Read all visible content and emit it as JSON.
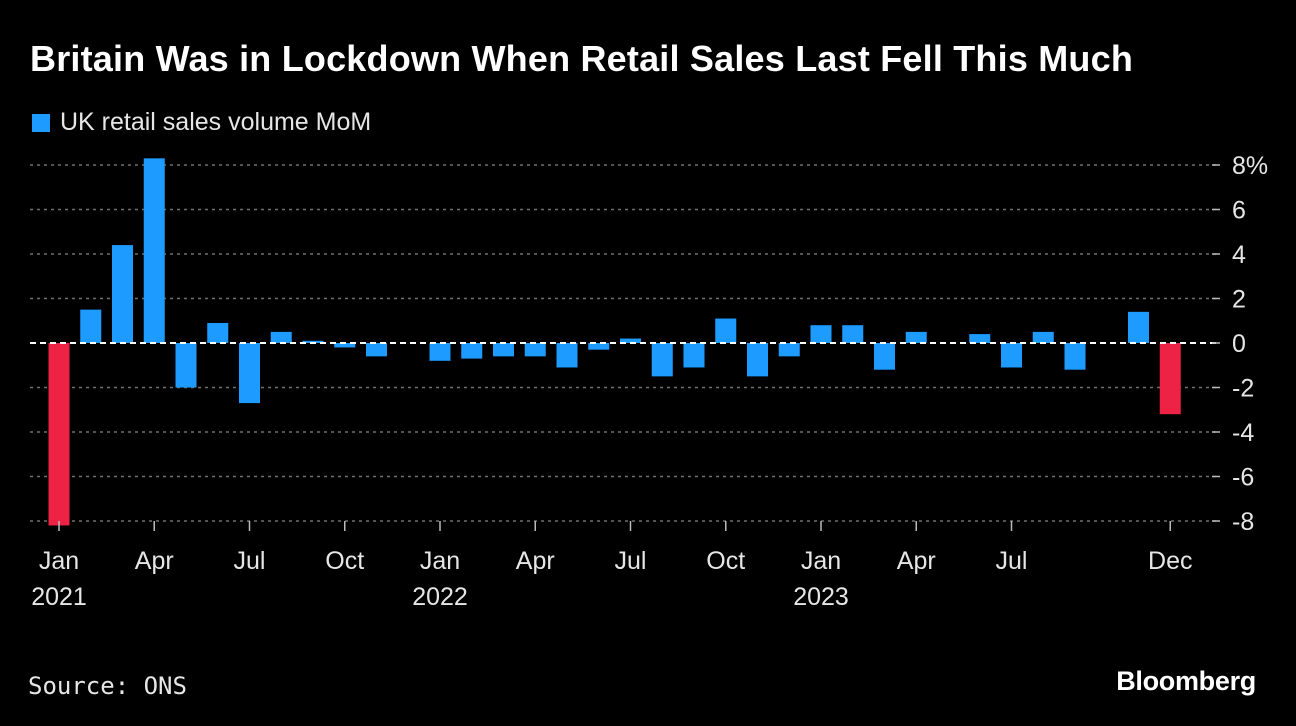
{
  "chart_data": {
    "type": "bar",
    "title": "Britain Was in Lockdown When Retail Sales Last Fell This Much",
    "source": "Source: ONS",
    "brand": "Bloomberg",
    "colors": {
      "positive": "#1e9bff",
      "highlight": "#ee2244",
      "grid": "#6f6f6f",
      "zero": "#ffffff"
    },
    "legend": {
      "position": "top-left",
      "entries": [
        {
          "name": "UK retail sales volume MoM",
          "color": "#1e9bff"
        }
      ]
    },
    "yaxis": {
      "ylim": [
        -8,
        8
      ],
      "ticks": [
        8,
        6,
        4,
        2,
        0,
        -2,
        -4,
        -6,
        -8
      ],
      "tick_labels": [
        "8%",
        "6",
        "4",
        "2",
        "0",
        "-2",
        "-4",
        "-6",
        "-8"
      ],
      "position": "right",
      "grid": true
    },
    "xaxis": {
      "tick_months": [
        "2021-01",
        "2021-04",
        "2021-07",
        "2021-10",
        "2022-01",
        "2022-04",
        "2022-07",
        "2022-10",
        "2023-01",
        "2023-04",
        "2023-07",
        "2023-12"
      ],
      "tick_labels": [
        [
          "Jan",
          "2021"
        ],
        [
          "Apr",
          ""
        ],
        [
          "Jul",
          ""
        ],
        [
          "Oct",
          ""
        ],
        [
          "Jan",
          "2022"
        ],
        [
          "Apr",
          ""
        ],
        [
          "Jul",
          ""
        ],
        [
          "Oct",
          ""
        ],
        [
          "Jan",
          "2023"
        ],
        [
          "Apr",
          ""
        ],
        [
          "Jul",
          ""
        ],
        [
          "Dec",
          ""
        ]
      ]
    },
    "categories": [
      "2021-01",
      "2021-02",
      "2021-03",
      "2021-04",
      "2021-05",
      "2021-06",
      "2021-07",
      "2021-08",
      "2021-09",
      "2021-10",
      "2021-11",
      "2021-12",
      "2022-01",
      "2022-02",
      "2022-03",
      "2022-04",
      "2022-05",
      "2022-06",
      "2022-07",
      "2022-08",
      "2022-09",
      "2022-10",
      "2022-11",
      "2022-12",
      "2023-01",
      "2023-02",
      "2023-03",
      "2023-04",
      "2023-05",
      "2023-06",
      "2023-07",
      "2023-08",
      "2023-09",
      "2023-10",
      "2023-11",
      "2023-12"
    ],
    "series": [
      {
        "name": "UK retail sales volume MoM",
        "values": [
          -8.2,
          1.5,
          4.4,
          8.3,
          -2.0,
          0.9,
          -2.7,
          0.5,
          0.1,
          -0.2,
          -0.6,
          0.0,
          -0.8,
          -0.7,
          -0.6,
          -0.6,
          -1.1,
          -0.3,
          0.2,
          -1.5,
          -1.1,
          1.1,
          -1.5,
          -0.6,
          0.8,
          0.8,
          -1.2,
          0.5,
          0.0,
          0.4,
          -1.1,
          0.5,
          -1.2,
          0.0,
          1.4,
          -3.2
        ],
        "highlight": [
          "2021-01",
          "2023-12"
        ]
      }
    ]
  }
}
